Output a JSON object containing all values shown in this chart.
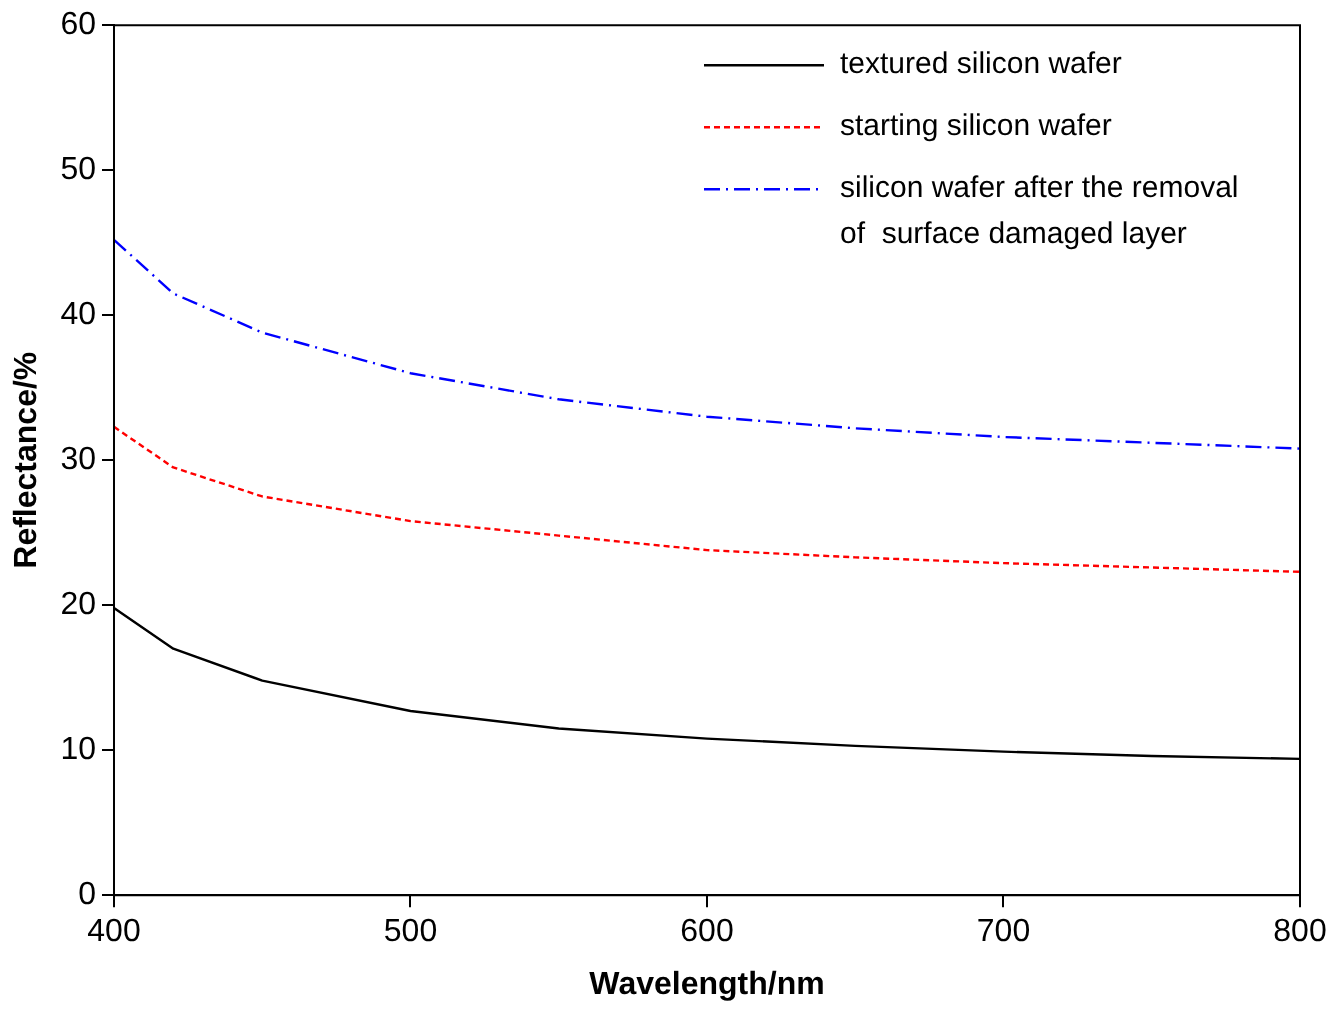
{
  "chart_data": {
    "type": "line",
    "xlabel": "Wavelength/nm",
    "ylabel": "Reflectance/%",
    "x": [
      400,
      420,
      450,
      500,
      550,
      600,
      650,
      700,
      750,
      800
    ],
    "series": [
      {
        "name": "textured silicon wafer",
        "color": "#000000",
        "line_style": "solid",
        "values": [
          19.8,
          17,
          14.8,
          12.7,
          11.5,
          10.8,
          10.3,
          9.9,
          9.6,
          9.4
        ]
      },
      {
        "name": "starting silicon wafer",
        "color": "#ff0000",
        "line_style": "dotted",
        "values": [
          32.3,
          29.5,
          27.5,
          25.8,
          24.8,
          23.8,
          23.3,
          22.9,
          22.6,
          22.3
        ]
      },
      {
        "name": "silicon wafer after the removal of  surface damaged layer",
        "color": "#0000ff",
        "line_style": "dashed",
        "values": [
          45.2,
          41.5,
          38.8,
          36,
          34.2,
          33,
          32.2,
          31.6,
          31.2,
          30.8
        ]
      }
    ],
    "xlim": [
      400,
      800
    ],
    "xticks": [
      400,
      500,
      600,
      700,
      800
    ],
    "ylim": [
      0,
      60
    ],
    "yticks": [
      0,
      10,
      20,
      30,
      40,
      50,
      60
    ],
    "grid": false,
    "legend": "top right",
    "marker": "none"
  }
}
